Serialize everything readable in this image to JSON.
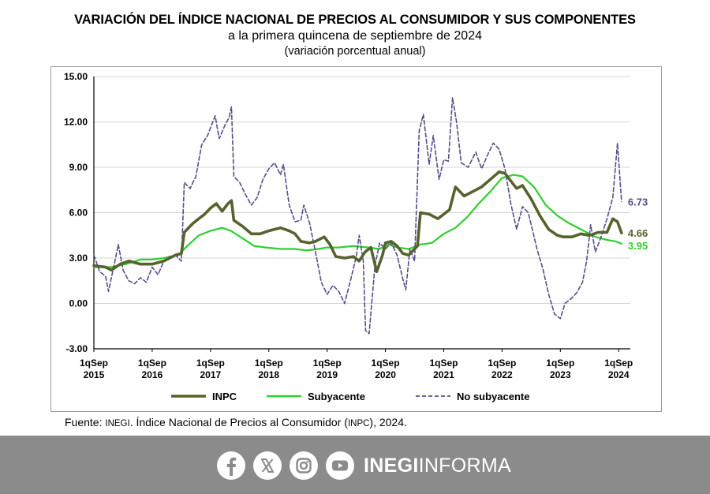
{
  "header": {
    "title": "VARIACIÓN DEL ÍNDICE NACIONAL DE PRECIOS AL CONSUMIDOR Y SUS COMPONENTES",
    "subtitle": "a la primera quincena de septiembre de 2024",
    "unit": "(variación porcentual anual)"
  },
  "source": {
    "prefix": "Fuente: ",
    "org": "INEGI",
    "mid": ". Índice Nacional de Precios al Consumidor (",
    "abbr": "INPC",
    "suffix": "), 2024."
  },
  "footer": {
    "icons": [
      "facebook-icon",
      "x-icon",
      "instagram-icon",
      "youtube-icon"
    ],
    "brand_bold": "INEGI",
    "brand_light": "INFORMA",
    "background": "#8b8b8b"
  },
  "chart_data": {
    "type": "line",
    "ylim": [
      -3,
      15
    ],
    "yticks": [
      "15.00",
      "12.00",
      "9.00",
      "6.00",
      "3.00",
      "0.00",
      "-3.00"
    ],
    "ytick_values": [
      15,
      12,
      9,
      6,
      3,
      0,
      -3
    ],
    "xlim": [
      2015,
      2024.2
    ],
    "xticks": [
      {
        "x": 2015,
        "line1": "1qSep",
        "line2": "2015"
      },
      {
        "x": 2016,
        "line1": "1qSep",
        "line2": "2016"
      },
      {
        "x": 2017,
        "line1": "1qSep",
        "line2": "2017"
      },
      {
        "x": 2018,
        "line1": "1qSep",
        "line2": "2018"
      },
      {
        "x": 2019,
        "line1": "1qSep",
        "line2": "2019"
      },
      {
        "x": 2020,
        "line1": "1qSep",
        "line2": "2020"
      },
      {
        "x": 2021,
        "line1": "1qSep",
        "line2": "2021"
      },
      {
        "x": 2022,
        "line1": "1qSep",
        "line2": "2022"
      },
      {
        "x": 2023,
        "line1": "1qSep",
        "line2": "2023"
      },
      {
        "x": 2024,
        "line1": "1qSep",
        "line2": "2024"
      }
    ],
    "grid": true,
    "legend_position": "bottom",
    "series": [
      {
        "name": "INPC",
        "color": "#56632d",
        "dash": false,
        "end_label": "4.66",
        "points": [
          [
            2015,
            2.5
          ],
          [
            2015.2,
            2.4
          ],
          [
            2015.3,
            2.2
          ],
          [
            2015.45,
            2.6
          ],
          [
            2015.6,
            2.8
          ],
          [
            2015.8,
            2.6
          ],
          [
            2016.0,
            2.6
          ],
          [
            2016.2,
            2.8
          ],
          [
            2016.4,
            3.2
          ],
          [
            2016.5,
            3.3
          ],
          [
            2016.55,
            4.7
          ],
          [
            2016.7,
            5.3
          ],
          [
            2016.9,
            5.9
          ],
          [
            2017.0,
            6.3
          ],
          [
            2017.1,
            6.6
          ],
          [
            2017.2,
            6.1
          ],
          [
            2017.3,
            6.6
          ],
          [
            2017.36,
            6.8
          ],
          [
            2017.4,
            5.5
          ],
          [
            2017.55,
            5.1
          ],
          [
            2017.7,
            4.6
          ],
          [
            2017.85,
            4.6
          ],
          [
            2018.0,
            4.8
          ],
          [
            2018.2,
            5.0
          ],
          [
            2018.35,
            4.8
          ],
          [
            2018.45,
            4.6
          ],
          [
            2018.55,
            4.1
          ],
          [
            2018.7,
            4.0
          ],
          [
            2018.8,
            4.1
          ],
          [
            2018.95,
            4.4
          ],
          [
            2019.05,
            3.9
          ],
          [
            2019.15,
            3.1
          ],
          [
            2019.3,
            3.0
          ],
          [
            2019.45,
            3.1
          ],
          [
            2019.55,
            2.8
          ],
          [
            2019.65,
            3.4
          ],
          [
            2019.75,
            3.7
          ],
          [
            2019.85,
            2.1
          ],
          [
            2019.95,
            3.2
          ],
          [
            2020.0,
            4.0
          ],
          [
            2020.1,
            4.1
          ],
          [
            2020.2,
            3.8
          ],
          [
            2020.3,
            3.3
          ],
          [
            2020.4,
            3.2
          ],
          [
            2020.5,
            3.6
          ],
          [
            2020.55,
            3.8
          ],
          [
            2020.6,
            6.0
          ],
          [
            2020.75,
            5.9
          ],
          [
            2020.9,
            5.6
          ],
          [
            2021.0,
            5.9
          ],
          [
            2021.1,
            6.2
          ],
          [
            2021.2,
            7.7
          ],
          [
            2021.35,
            7.1
          ],
          [
            2021.5,
            7.4
          ],
          [
            2021.65,
            7.7
          ],
          [
            2021.8,
            8.2
          ],
          [
            2021.95,
            8.7
          ],
          [
            2022.05,
            8.6
          ],
          [
            2022.15,
            8.1
          ],
          [
            2022.25,
            7.6
          ],
          [
            2022.35,
            7.8
          ],
          [
            2022.5,
            6.9
          ],
          [
            2022.65,
            5.8
          ],
          [
            2022.8,
            4.9
          ],
          [
            2022.95,
            4.5
          ],
          [
            2023.05,
            4.4
          ],
          [
            2023.2,
            4.4
          ],
          [
            2023.35,
            4.6
          ],
          [
            2023.5,
            4.5
          ],
          [
            2023.65,
            4.7
          ],
          [
            2023.8,
            4.7
          ],
          [
            2023.9,
            5.6
          ],
          [
            2023.98,
            5.4
          ],
          [
            2024.05,
            4.66
          ]
        ]
      },
      {
        "name": "Subyacente",
        "color": "#2ecf2e",
        "dash": false,
        "end_label": "3.95",
        "points": [
          [
            2015,
            2.4
          ],
          [
            2015.3,
            2.4
          ],
          [
            2015.55,
            2.6
          ],
          [
            2015.8,
            2.9
          ],
          [
            2016.0,
            2.9
          ],
          [
            2016.2,
            3.0
          ],
          [
            2016.45,
            3.2
          ],
          [
            2016.6,
            3.8
          ],
          [
            2016.8,
            4.5
          ],
          [
            2017.0,
            4.8
          ],
          [
            2017.2,
            5.0
          ],
          [
            2017.35,
            4.8
          ],
          [
            2017.55,
            4.3
          ],
          [
            2017.75,
            3.8
          ],
          [
            2017.95,
            3.7
          ],
          [
            2018.2,
            3.6
          ],
          [
            2018.45,
            3.6
          ],
          [
            2018.65,
            3.5
          ],
          [
            2018.85,
            3.6
          ],
          [
            2019.0,
            3.7
          ],
          [
            2019.2,
            3.7
          ],
          [
            2019.45,
            3.8
          ],
          [
            2019.7,
            3.7
          ],
          [
            2019.9,
            3.6
          ],
          [
            2020.05,
            3.9
          ],
          [
            2020.2,
            3.7
          ],
          [
            2020.4,
            3.6
          ],
          [
            2020.6,
            3.9
          ],
          [
            2020.8,
            4.0
          ],
          [
            2021.0,
            4.6
          ],
          [
            2021.2,
            5.0
          ],
          [
            2021.4,
            5.7
          ],
          [
            2021.6,
            6.6
          ],
          [
            2021.8,
            7.4
          ],
          [
            2022.0,
            8.3
          ],
          [
            2022.2,
            8.5
          ],
          [
            2022.35,
            8.4
          ],
          [
            2022.55,
            7.7
          ],
          [
            2022.75,
            6.5
          ],
          [
            2022.95,
            5.8
          ],
          [
            2023.15,
            5.3
          ],
          [
            2023.4,
            4.8
          ],
          [
            2023.6,
            4.4
          ],
          [
            2023.8,
            4.2
          ],
          [
            2023.95,
            4.1
          ],
          [
            2024.05,
            3.95
          ]
        ]
      },
      {
        "name": "No subyacente",
        "color": "#5a4b8c",
        "dash": true,
        "end_label": "6.73",
        "points": [
          [
            2015,
            3.2
          ],
          [
            2015.1,
            2.1
          ],
          [
            2015.2,
            1.8
          ],
          [
            2015.25,
            0.8
          ],
          [
            2015.35,
            2.6
          ],
          [
            2015.42,
            3.9
          ],
          [
            2015.5,
            2.2
          ],
          [
            2015.6,
            1.5
          ],
          [
            2015.7,
            1.3
          ],
          [
            2015.8,
            1.7
          ],
          [
            2015.9,
            1.4
          ],
          [
            2016.0,
            2.4
          ],
          [
            2016.1,
            1.9
          ],
          [
            2016.2,
            2.8
          ],
          [
            2016.3,
            3.1
          ],
          [
            2016.4,
            3.2
          ],
          [
            2016.5,
            2.8
          ],
          [
            2016.55,
            8.0
          ],
          [
            2016.65,
            7.6
          ],
          [
            2016.75,
            8.4
          ],
          [
            2016.85,
            10.5
          ],
          [
            2016.95,
            11.1
          ],
          [
            2017.0,
            11.6
          ],
          [
            2017.08,
            12.4
          ],
          [
            2017.15,
            10.9
          ],
          [
            2017.25,
            11.8
          ],
          [
            2017.32,
            12.3
          ],
          [
            2017.36,
            13.0
          ],
          [
            2017.4,
            8.4
          ],
          [
            2017.5,
            8.0
          ],
          [
            2017.6,
            7.2
          ],
          [
            2017.7,
            6.5
          ],
          [
            2017.8,
            7.0
          ],
          [
            2017.9,
            8.2
          ],
          [
            2018.0,
            8.9
          ],
          [
            2018.1,
            9.3
          ],
          [
            2018.2,
            8.5
          ],
          [
            2018.25,
            9.2
          ],
          [
            2018.35,
            6.5
          ],
          [
            2018.45,
            5.4
          ],
          [
            2018.55,
            5.5
          ],
          [
            2018.6,
            6.5
          ],
          [
            2018.7,
            5.3
          ],
          [
            2018.8,
            3.4
          ],
          [
            2018.9,
            1.4
          ],
          [
            2019.0,
            0.6
          ],
          [
            2019.1,
            1.2
          ],
          [
            2019.2,
            0.8
          ],
          [
            2019.3,
            0.0
          ],
          [
            2019.4,
            1.5
          ],
          [
            2019.5,
            3.1
          ],
          [
            2019.55,
            4.5
          ],
          [
            2019.62,
            2.8
          ],
          [
            2019.66,
            -1.8
          ],
          [
            2019.72,
            -2.0
          ],
          [
            2019.82,
            2.5
          ],
          [
            2019.9,
            4.0
          ],
          [
            2020.0,
            3.6
          ],
          [
            2020.1,
            4.0
          ],
          [
            2020.2,
            3.2
          ],
          [
            2020.3,
            1.6
          ],
          [
            2020.35,
            0.9
          ],
          [
            2020.42,
            3.6
          ],
          [
            2020.5,
            2.8
          ],
          [
            2020.58,
            11.4
          ],
          [
            2020.65,
            12.5
          ],
          [
            2020.75,
            9.2
          ],
          [
            2020.82,
            11.1
          ],
          [
            2020.92,
            8.2
          ],
          [
            2021.0,
            9.5
          ],
          [
            2021.08,
            9.4
          ],
          [
            2021.15,
            13.6
          ],
          [
            2021.22,
            12.0
          ],
          [
            2021.3,
            9.3
          ],
          [
            2021.42,
            9.0
          ],
          [
            2021.55,
            10.0
          ],
          [
            2021.65,
            8.9
          ],
          [
            2021.75,
            9.8
          ],
          [
            2021.85,
            10.6
          ],
          [
            2021.95,
            10.2
          ],
          [
            2022.05,
            8.9
          ],
          [
            2022.15,
            6.6
          ],
          [
            2022.25,
            4.9
          ],
          [
            2022.35,
            6.4
          ],
          [
            2022.45,
            6.0
          ],
          [
            2022.6,
            3.6
          ],
          [
            2022.7,
            2.3
          ],
          [
            2022.8,
            0.6
          ],
          [
            2022.9,
            -0.7
          ],
          [
            2023.0,
            -1.0
          ],
          [
            2023.08,
            0.0
          ],
          [
            2023.18,
            0.3
          ],
          [
            2023.28,
            0.7
          ],
          [
            2023.38,
            1.4
          ],
          [
            2023.45,
            2.8
          ],
          [
            2023.52,
            5.2
          ],
          [
            2023.6,
            3.4
          ],
          [
            2023.7,
            4.4
          ],
          [
            2023.8,
            5.6
          ],
          [
            2023.9,
            7.0
          ],
          [
            2023.98,
            10.6
          ],
          [
            2024.05,
            6.73
          ]
        ]
      }
    ]
  }
}
